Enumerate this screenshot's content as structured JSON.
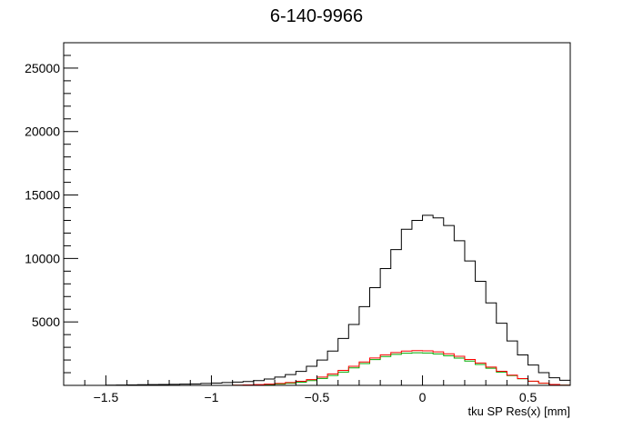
{
  "chart_data": {
    "type": "step-histogram",
    "title": "6-140-9966",
    "xlabel": "tku SP Res(x) [mm]",
    "ylabel": "",
    "xlim": [
      -1.7,
      0.7
    ],
    "ylim": [
      0,
      27000
    ],
    "x_major_ticks": [
      -1.5,
      -1,
      -0.5,
      0,
      0.5
    ],
    "x_tick_labels": [
      "−1.5",
      "−1",
      "−0.5",
      "0",
      "0.5"
    ],
    "y_major_ticks": [
      5000,
      10000,
      15000,
      20000,
      25000
    ],
    "y_tick_labels": [
      "5000",
      "10000",
      "15000",
      "20000",
      "25000"
    ],
    "bins": [
      -1.7,
      -1.65,
      -1.6,
      -1.55,
      -1.5,
      -1.45,
      -1.4,
      -1.35,
      -1.3,
      -1.25,
      -1.2,
      -1.15,
      -1.1,
      -1.05,
      -1.0,
      -0.95,
      -0.9,
      -0.85,
      -0.8,
      -0.75,
      -0.7,
      -0.65,
      -0.6,
      -0.55,
      -0.5,
      -0.45,
      -0.4,
      -0.35,
      -0.3,
      -0.25,
      -0.2,
      -0.15,
      -0.1,
      -0.05,
      0.0,
      0.05,
      0.1,
      0.15,
      0.2,
      0.25,
      0.3,
      0.35,
      0.4,
      0.45,
      0.5,
      0.55,
      0.6,
      0.65,
      0.7
    ],
    "series": [
      {
        "color": "#000000",
        "values": [
          0,
          0,
          0,
          0,
          20,
          30,
          40,
          50,
          60,
          70,
          80,
          100,
          120,
          150,
          180,
          220,
          260,
          300,
          380,
          500,
          650,
          850,
          1100,
          1500,
          2000,
          2700,
          3700,
          4800,
          6200,
          7700,
          9200,
          10700,
          12300,
          13000,
          13400,
          13200,
          12600,
          11400,
          9800,
          8200,
          6500,
          4900,
          3500,
          2400,
          1600,
          1000,
          600,
          400
        ]
      },
      {
        "color": "#00aa00",
        "values": [
          0,
          0,
          0,
          0,
          0,
          0,
          0,
          0,
          0,
          0,
          0,
          0,
          0,
          0,
          0,
          0,
          10,
          20,
          40,
          70,
          110,
          170,
          250,
          380,
          550,
          780,
          1050,
          1380,
          1720,
          2030,
          2270,
          2440,
          2530,
          2570,
          2550,
          2480,
          2340,
          2150,
          1920,
          1650,
          1350,
          1050,
          770,
          520,
          320,
          170,
          70,
          20
        ]
      },
      {
        "color": "#ff0000",
        "values": [
          0,
          0,
          0,
          0,
          0,
          0,
          0,
          0,
          0,
          0,
          0,
          0,
          0,
          0,
          0,
          0,
          20,
          40,
          60,
          100,
          150,
          220,
          320,
          460,
          650,
          900,
          1180,
          1500,
          1840,
          2160,
          2410,
          2590,
          2700,
          2740,
          2720,
          2640,
          2490,
          2290,
          2040,
          1760,
          1440,
          1110,
          810,
          540,
          330,
          170,
          70,
          20
        ]
      }
    ]
  }
}
